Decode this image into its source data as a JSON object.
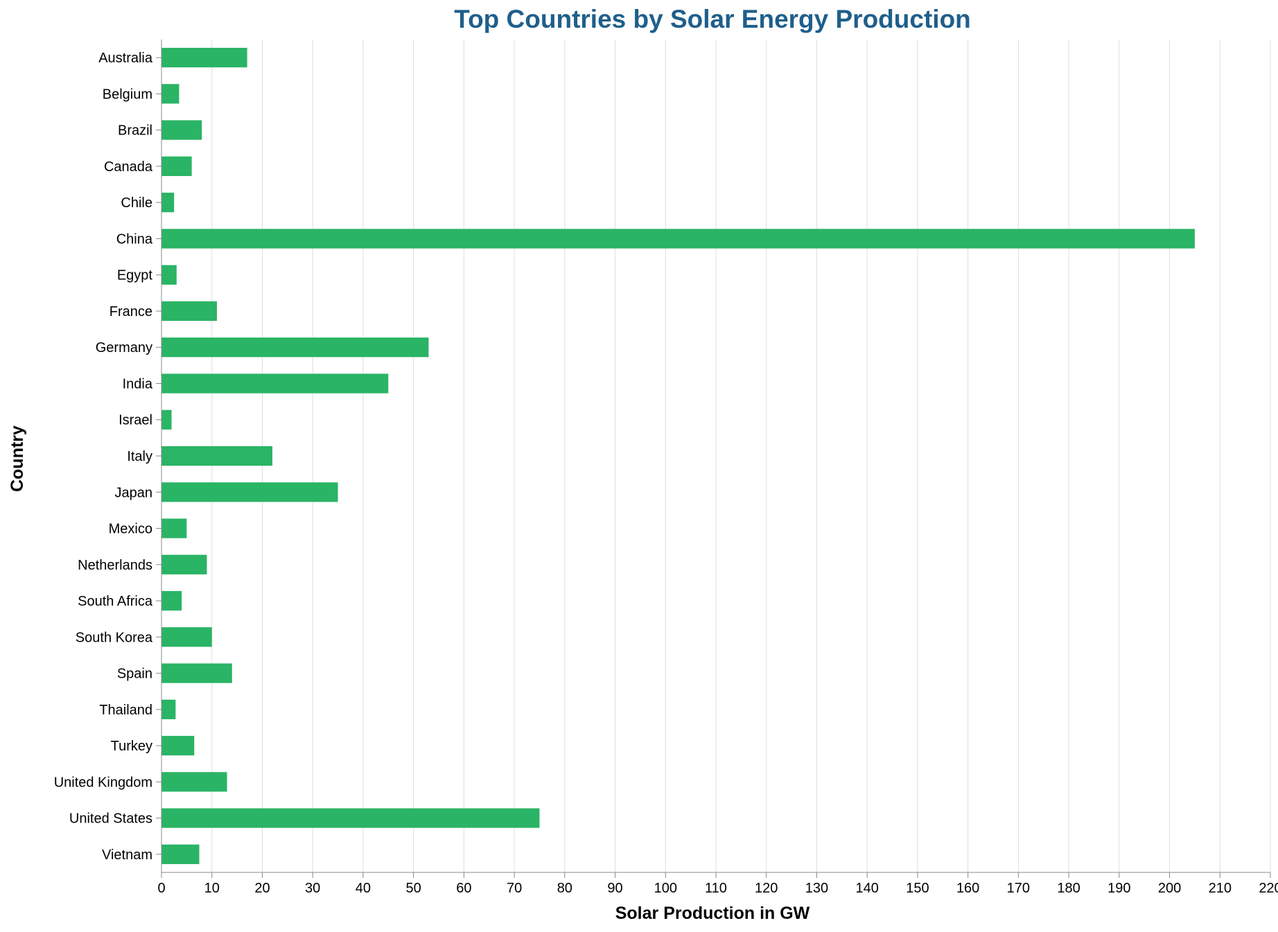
{
  "colors": {
    "bar": "#2ab465",
    "title": "#1f5f8b"
  },
  "chart_data": {
    "type": "bar",
    "orientation": "horizontal",
    "title": "Top Countries by Solar Energy Production",
    "xlabel": "Solar Production in GW",
    "ylabel": "Country",
    "xlim": [
      0,
      220
    ],
    "x_ticks": [
      0,
      10,
      20,
      30,
      40,
      50,
      60,
      70,
      80,
      90,
      100,
      110,
      120,
      130,
      140,
      150,
      160,
      170,
      180,
      190,
      200,
      210,
      220
    ],
    "grid": "vertical",
    "categories": [
      "Australia",
      "Belgium",
      "Brazil",
      "Canada",
      "Chile",
      "China",
      "Egypt",
      "France",
      "Germany",
      "India",
      "Israel",
      "Italy",
      "Japan",
      "Mexico",
      "Netherlands",
      "South Africa",
      "South Korea",
      "Spain",
      "Thailand",
      "Turkey",
      "United Kingdom",
      "United States",
      "Vietnam"
    ],
    "values": [
      17,
      3.5,
      8,
      6,
      2.5,
      205,
      3,
      11,
      53,
      45,
      2,
      22,
      35,
      5,
      9,
      4,
      10,
      14,
      2.8,
      6.5,
      13,
      75,
      7.5
    ]
  }
}
